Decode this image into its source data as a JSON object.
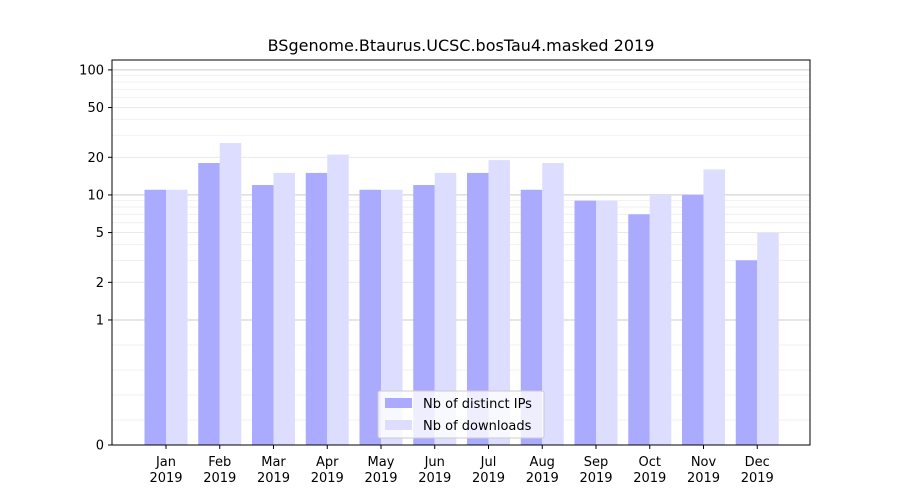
{
  "chart_data": {
    "type": "bar",
    "title": "BSgenome.Btaurus.UCSC.bosTau4.masked 2019",
    "xlabel": "",
    "ylabel": "",
    "yscale": "symlog",
    "ylim": [
      0,
      120
    ],
    "yticks": [
      0,
      1,
      2,
      5,
      10,
      20,
      50,
      100
    ],
    "ytick_labels": [
      "0",
      "1",
      "2",
      "5",
      "10",
      "20",
      "50",
      "100"
    ],
    "grid": true,
    "legend_position": "bottom-center",
    "categories": [
      [
        "Jan",
        "2019"
      ],
      [
        "Feb",
        "2019"
      ],
      [
        "Mar",
        "2019"
      ],
      [
        "Apr",
        "2019"
      ],
      [
        "May",
        "2019"
      ],
      [
        "Jun",
        "2019"
      ],
      [
        "Jul",
        "2019"
      ],
      [
        "Aug",
        "2019"
      ],
      [
        "Sep",
        "2019"
      ],
      [
        "Oct",
        "2019"
      ],
      [
        "Nov",
        "2019"
      ],
      [
        "Dec",
        "2019"
      ]
    ],
    "series": [
      {
        "name": "Nb of distinct IPs",
        "color": "#aaaaff",
        "values": [
          11,
          18,
          12,
          15,
          11,
          12,
          15,
          11,
          9,
          7,
          10,
          3
        ]
      },
      {
        "name": "Nb of downloads",
        "color": "#ddddff",
        "values": [
          11,
          26,
          15,
          21,
          11,
          15,
          19,
          18,
          9,
          10,
          16,
          5
        ]
      }
    ]
  }
}
